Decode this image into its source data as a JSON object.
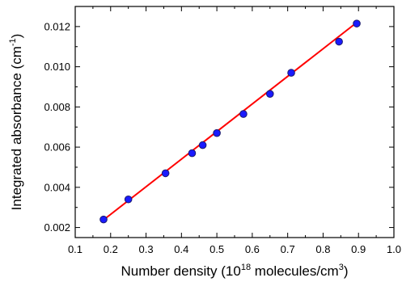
{
  "chart_data": {
    "type": "scatter",
    "title": "",
    "xlabel": {
      "prefix": "Number density (10",
      "sup1": "18",
      "middle": " molecules/cm",
      "sup2": "3",
      "suffix": ")"
    },
    "ylabel": {
      "prefix": "Integrated absorbance (cm",
      "sup": "-1",
      "suffix": ")"
    },
    "xlim": [
      0.1,
      1.0
    ],
    "ylim": [
      0.0015,
      0.013
    ],
    "x_ticks": [
      0.1,
      0.2,
      0.3,
      0.4,
      0.5,
      0.6,
      0.7,
      0.8,
      0.9,
      1.0
    ],
    "x_tick_labels": [
      "0.1",
      "0.2",
      "0.3",
      "0.4",
      "0.5",
      "0.6",
      "0.7",
      "0.8",
      "0.9",
      "1.0"
    ],
    "y_ticks": [
      0.002,
      0.004,
      0.006,
      0.008,
      0.01,
      0.012
    ],
    "y_tick_labels": [
      "0.002",
      "0.004",
      "0.006",
      "0.008",
      "0.010",
      "0.012"
    ],
    "grid": false,
    "legend": "none",
    "series": [
      {
        "kind": "points",
        "color": "#1a1aff",
        "edge_color": "#1a1a6e",
        "marker": "circle",
        "x": [
          0.18,
          0.25,
          0.355,
          0.43,
          0.46,
          0.5,
          0.575,
          0.65,
          0.71,
          0.845,
          0.895
        ],
        "y": [
          0.0024,
          0.0034,
          0.0047,
          0.0057,
          0.0061,
          0.0067,
          0.00765,
          0.00865,
          0.0097,
          0.01125,
          0.01215
        ]
      },
      {
        "kind": "fit-line",
        "color": "#ff0000",
        "x": [
          0.18,
          0.895
        ],
        "y": [
          0.00238,
          0.0122
        ]
      }
    ]
  }
}
